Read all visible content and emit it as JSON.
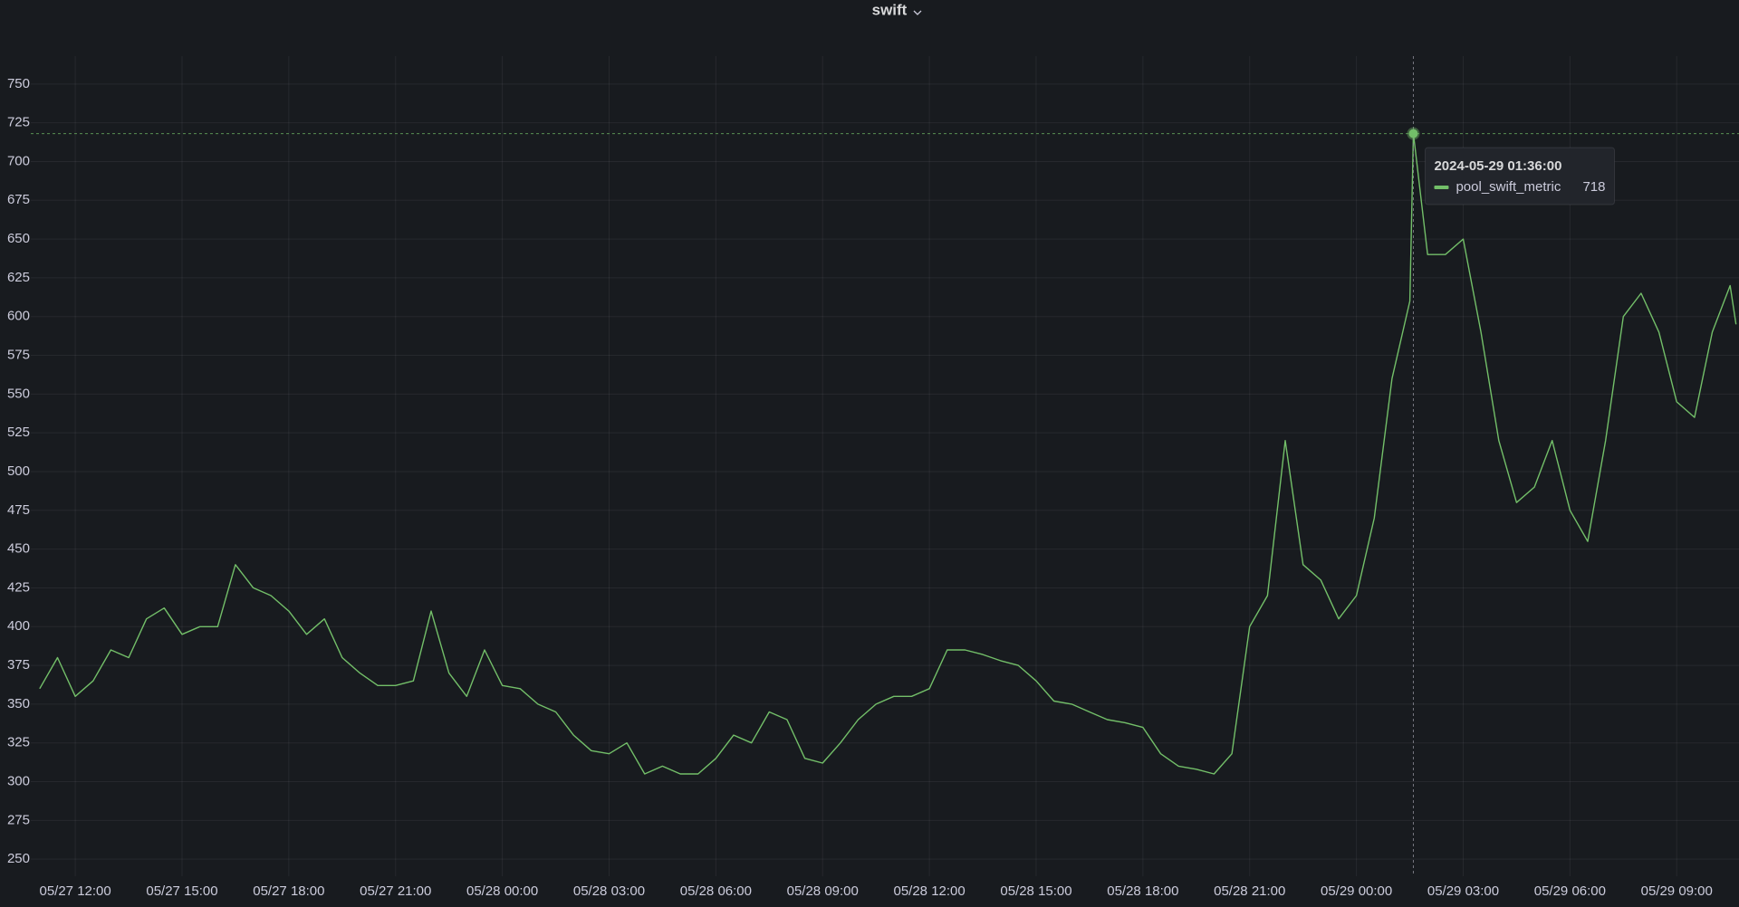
{
  "chart_data": {
    "type": "line",
    "title": "swift",
    "x": [
      "05/27 11:00",
      "05/27 11:30",
      "05/27 12:00",
      "05/27 12:30",
      "05/27 13:00",
      "05/27 13:30",
      "05/27 14:00",
      "05/27 14:30",
      "05/27 15:00",
      "05/27 15:30",
      "05/27 16:00",
      "05/27 16:30",
      "05/27 17:00",
      "05/27 17:30",
      "05/27 18:00",
      "05/27 18:30",
      "05/27 19:00",
      "05/27 19:30",
      "05/27 20:00",
      "05/27 20:30",
      "05/27 21:00",
      "05/27 21:30",
      "05/27 22:00",
      "05/27 22:30",
      "05/27 23:00",
      "05/27 23:30",
      "05/28 00:00",
      "05/28 00:30",
      "05/28 01:00",
      "05/28 01:30",
      "05/28 02:00",
      "05/28 02:30",
      "05/28 03:00",
      "05/28 03:30",
      "05/28 04:00",
      "05/28 04:30",
      "05/28 05:00",
      "05/28 05:30",
      "05/28 06:00",
      "05/28 06:30",
      "05/28 07:00",
      "05/28 07:30",
      "05/28 08:00",
      "05/28 08:30",
      "05/28 09:00",
      "05/28 09:30",
      "05/28 10:00",
      "05/28 10:30",
      "05/28 11:00",
      "05/28 11:30",
      "05/28 12:00",
      "05/28 12:30",
      "05/28 13:00",
      "05/28 13:30",
      "05/28 14:00",
      "05/28 14:30",
      "05/28 15:00",
      "05/28 15:30",
      "05/28 16:00",
      "05/28 16:30",
      "05/28 17:00",
      "05/28 17:30",
      "05/28 18:00",
      "05/28 18:30",
      "05/28 19:00",
      "05/28 19:30",
      "05/28 20:00",
      "05/28 20:30",
      "05/28 21:00",
      "05/28 21:30",
      "05/28 22:00",
      "05/28 22:30",
      "05/28 23:00",
      "05/28 23:30",
      "05/29 00:00",
      "05/29 00:30",
      "05/29 01:00",
      "05/29 01:30",
      "05/29 01:36",
      "05/29 02:00",
      "05/29 02:30",
      "05/29 03:00",
      "05/29 03:30",
      "05/29 04:00",
      "05/29 04:30",
      "05/29 05:00",
      "05/29 05:30",
      "05/29 06:00",
      "05/29 06:30",
      "05/29 07:00",
      "05/29 07:30",
      "05/29 08:00",
      "05/29 08:30",
      "05/29 09:00",
      "05/29 09:30",
      "05/29 10:00",
      "05/29 10:30",
      "05/29 10:40"
    ],
    "series": [
      {
        "name": "pool_swift_metric",
        "color": "#73bf69",
        "values": [
          360,
          380,
          355,
          365,
          385,
          380,
          405,
          412,
          395,
          400,
          400,
          440,
          425,
          420,
          410,
          395,
          405,
          380,
          370,
          362,
          362,
          365,
          410,
          370,
          355,
          385,
          362,
          360,
          350,
          345,
          330,
          320,
          318,
          325,
          305,
          310,
          305,
          305,
          315,
          330,
          325,
          345,
          340,
          315,
          312,
          325,
          340,
          350,
          355,
          355,
          360,
          385,
          385,
          382,
          378,
          375,
          365,
          352,
          350,
          345,
          340,
          338,
          335,
          318,
          310,
          308,
          305,
          318,
          400,
          420,
          520,
          440,
          430,
          405,
          420,
          470,
          560,
          610,
          718,
          640,
          640,
          650,
          590,
          520,
          480,
          490,
          520,
          475,
          455,
          520,
          600,
          615,
          590,
          545,
          535,
          590,
          620,
          595
        ]
      }
    ],
    "xlim": [
      "05/27 10:45",
      "05/29 10:45"
    ],
    "xticks": [
      "05/27 12:00",
      "05/27 15:00",
      "05/27 18:00",
      "05/27 21:00",
      "05/28 00:00",
      "05/28 03:00",
      "05/28 06:00",
      "05/28 09:00",
      "05/28 12:00",
      "05/28 15:00",
      "05/28 18:00",
      "05/28 21:00",
      "05/29 00:00",
      "05/29 03:00",
      "05/29 06:00",
      "05/29 09:00"
    ],
    "ylim": [
      239,
      768
    ],
    "yticks": [
      250,
      275,
      300,
      325,
      350,
      375,
      400,
      425,
      450,
      475,
      500,
      525,
      550,
      575,
      600,
      625,
      650,
      675,
      700,
      725,
      750
    ],
    "grid": true,
    "hover_time": "2024-05-29 01:36:00"
  }
}
